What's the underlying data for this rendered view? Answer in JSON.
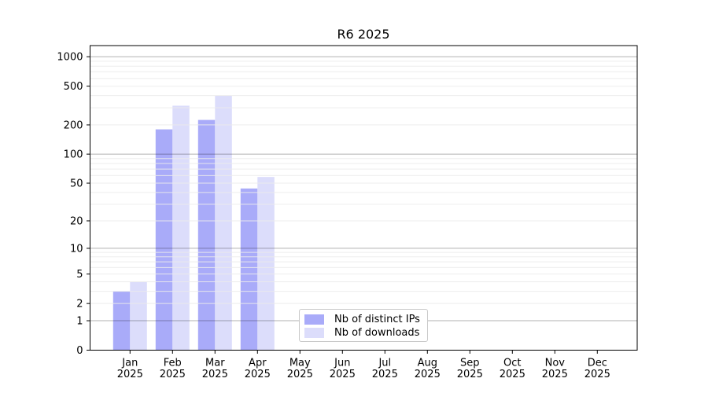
{
  "title": "R6 2025",
  "chart_data": {
    "type": "bar",
    "title": "R6 2025",
    "categories": [
      "Jan",
      "Feb",
      "Mar",
      "Apr",
      "May",
      "Jun",
      "Jul",
      "Aug",
      "Sep",
      "Oct",
      "Nov",
      "Dec"
    ],
    "category_year": "2025",
    "series": [
      {
        "name": "Nb of distinct IPs",
        "color": "#a9abf9",
        "values": [
          3,
          180,
          225,
          44,
          0,
          0,
          0,
          0,
          0,
          0,
          0,
          0
        ]
      },
      {
        "name": "Nb of downloads",
        "color": "#dcddfb",
        "values": [
          4,
          315,
          400,
          58,
          0,
          0,
          0,
          0,
          0,
          0,
          0,
          0
        ]
      }
    ],
    "y_axis": {
      "scale": "log1p",
      "tick_labels": [
        0,
        1,
        2,
        5,
        10,
        20,
        50,
        100,
        200,
        500,
        1000
      ],
      "ylim": [
        0,
        1300
      ],
      "grid": true
    },
    "legend": {
      "position": "inside-bottom-center"
    }
  },
  "colors": {
    "axis": "#000000",
    "major_grid": "#b3b3b3",
    "minor_grid": "#ebebeb",
    "background": "#ffffff",
    "text": "#000000"
  }
}
